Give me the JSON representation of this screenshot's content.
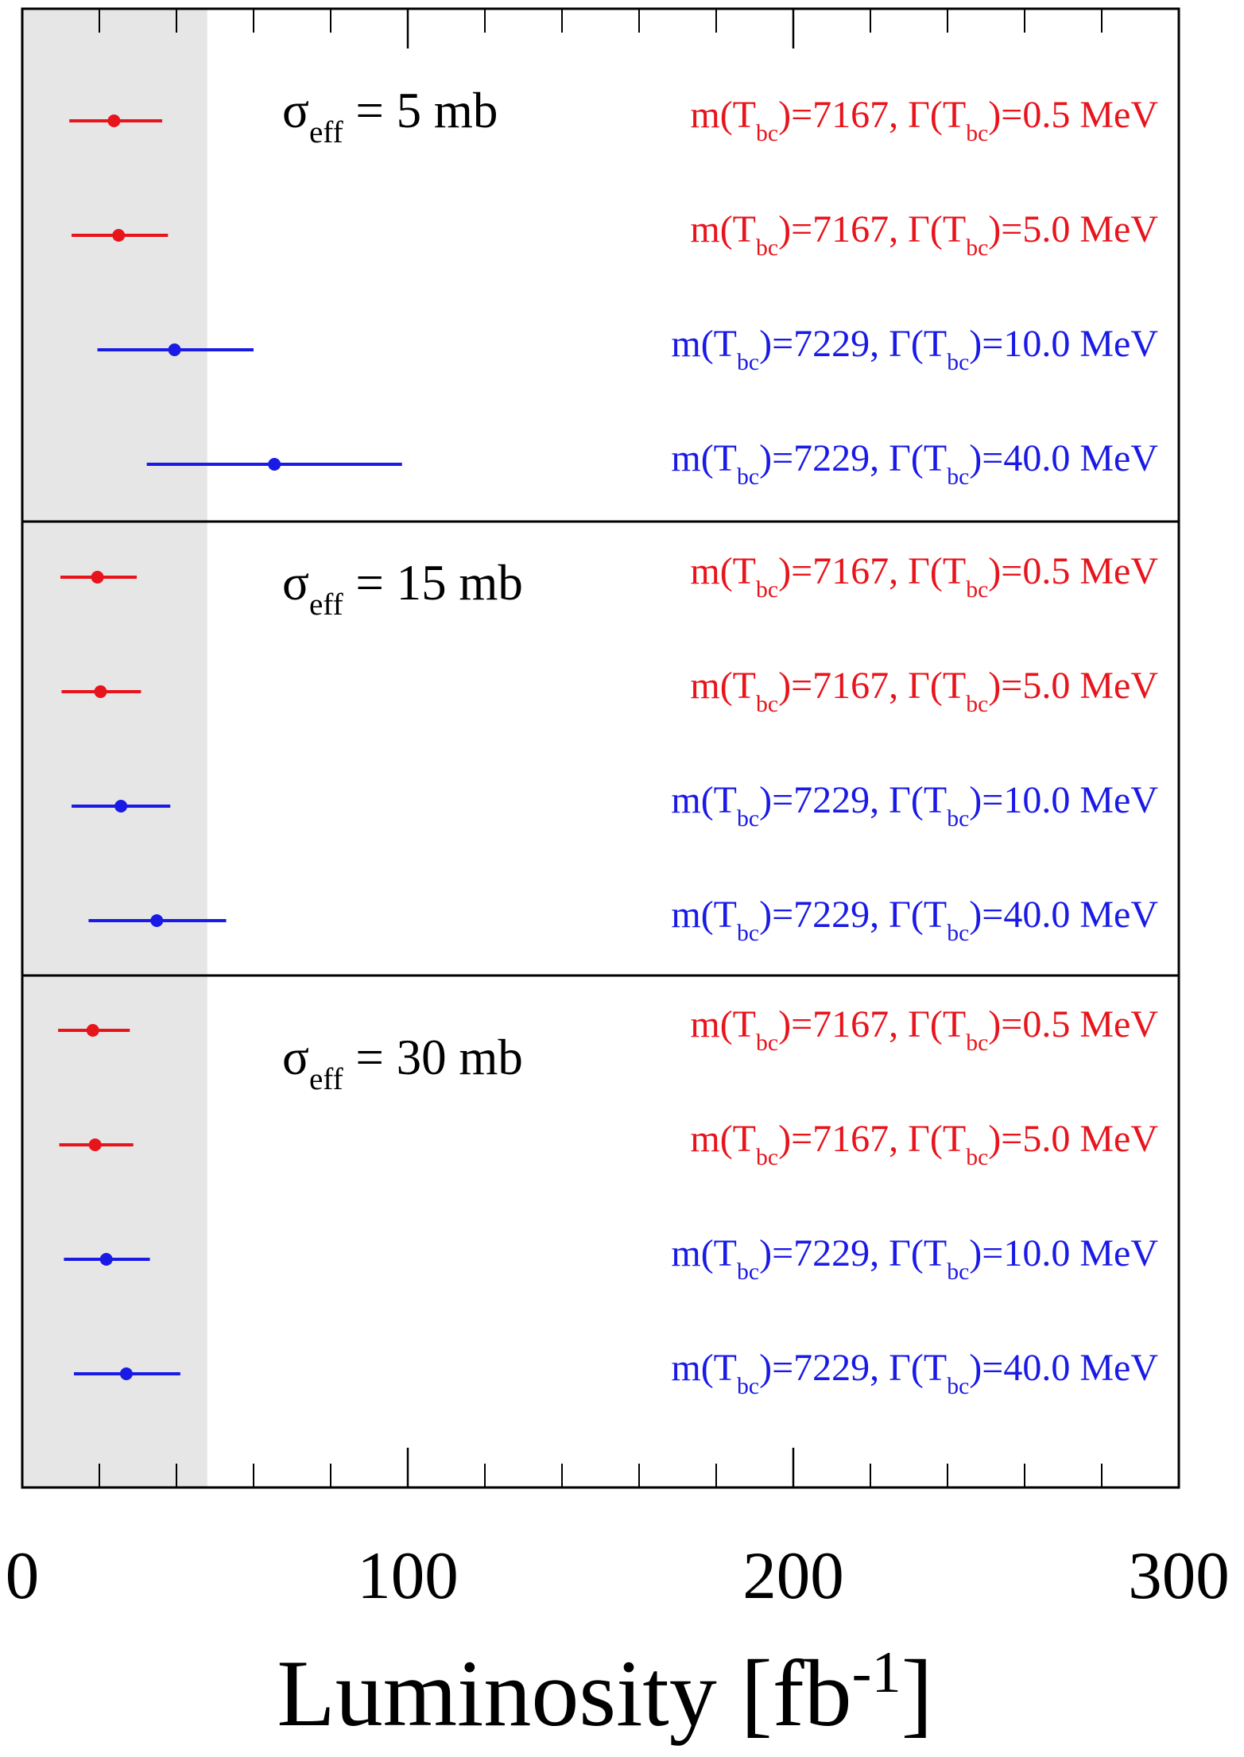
{
  "chart_data": {
    "type": "errorbar",
    "xlabel": [
      "Luminosity [fb",
      "-1",
      "]"
    ],
    "xlim": [
      0,
      300
    ],
    "xticks": [
      0,
      100,
      200,
      300
    ],
    "xminorticks": [
      20,
      40,
      60,
      80,
      120,
      140,
      160,
      180,
      220,
      240,
      260,
      280
    ],
    "shade_xlim": [
      0,
      48
    ],
    "shade_color": "#e6e6e6",
    "panels": [
      {
        "label": [
          "σ",
          "eff",
          " = 5 mb"
        ],
        "labels": [
          [
            "m(T",
            "bc",
            ")=7167, Γ(T",
            "bc",
            ")=0.5 MeV"
          ],
          [
            "m(T",
            "bc",
            ")=7167, Γ(T",
            "bc",
            ")=5.0 MeV"
          ],
          [
            "m(T",
            "bc",
            ")=7229, Γ(T",
            "bc",
            ")=10.0 MeV"
          ],
          [
            "m(T",
            "bc",
            ")=7229, Γ(T",
            "bc",
            ")=40.0 MeV"
          ]
        ],
        "colors": [
          "#e8141c",
          "#e8141c",
          "#1a1ae6",
          "#1a1ae6"
        ],
        "values": [
          23.8,
          25,
          39.5,
          65.4
        ],
        "lower": [
          12.2,
          12.8,
          19.5,
          32.3
        ],
        "upper": [
          36.3,
          37.8,
          60,
          98.5
        ]
      },
      {
        "label": [
          "σ",
          "eff",
          " = 15 mb"
        ],
        "labels": [
          [
            "m(T",
            "bc",
            ")=7167, Γ(T",
            "bc",
            ")=0.5 MeV"
          ],
          [
            "m(T",
            "bc",
            ")=7167, Γ(T",
            "bc",
            ")=5.0 MeV"
          ],
          [
            "m(T",
            "bc",
            ")=7229, Γ(T",
            "bc",
            ")=10.0 MeV"
          ],
          [
            "m(T",
            "bc",
            ")=7229, Γ(T",
            "bc",
            ")=40.0 MeV"
          ]
        ],
        "colors": [
          "#e8141c",
          "#e8141c",
          "#1a1ae6",
          "#1a1ae6"
        ],
        "values": [
          19.5,
          20.3,
          25.6,
          34.9
        ],
        "lower": [
          9.9,
          10.2,
          12.8,
          17.2
        ],
        "upper": [
          29.7,
          30.8,
          38.4,
          52.9
        ]
      },
      {
        "label": [
          "σ",
          "eff",
          " = 30 mb"
        ],
        "labels": [
          [
            "m(T",
            "bc",
            ")=7167, Γ(T",
            "bc",
            ")=0.5 MeV"
          ],
          [
            "m(T",
            "bc",
            ")=7167, Γ(T",
            "bc",
            ")=5.0 MeV"
          ],
          [
            "m(T",
            "bc",
            ")=7229, Γ(T",
            "bc",
            ")=10.0 MeV"
          ],
          [
            "m(T",
            "bc",
            ")=7229, Γ(T",
            "bc",
            ")=40.0 MeV"
          ]
        ],
        "colors": [
          "#e8141c",
          "#e8141c",
          "#1a1ae6",
          "#1a1ae6"
        ],
        "values": [
          18.3,
          18.9,
          21.8,
          27
        ],
        "lower": [
          9.3,
          9.6,
          10.8,
          13.4
        ],
        "upper": [
          27.9,
          28.8,
          33.1,
          41
        ]
      }
    ]
  }
}
